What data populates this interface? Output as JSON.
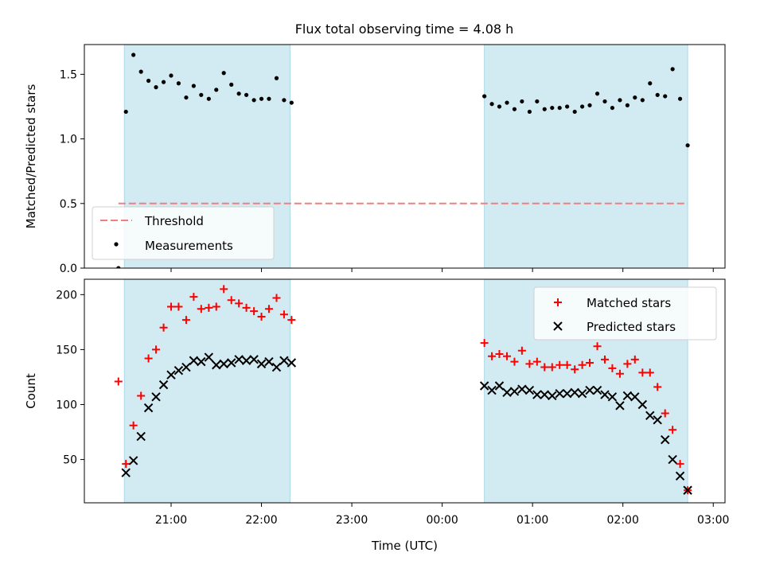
{
  "title": "Flux total observing time = 4.08 h",
  "chart_data": [
    {
      "type": "scatter",
      "panel": "top",
      "ylabel": "Matched/Predicted stars",
      "xlabel": "",
      "x_unit": "hours (UTC, values beyond 24 wrap past midnight)",
      "xlim": [
        20.04,
        27.13
      ],
      "ylim": [
        0.0,
        1.73
      ],
      "yticks": [
        0.0,
        0.5,
        1.0,
        1.5
      ],
      "ytick_labels": [
        "0.0",
        "0.5",
        "1.0",
        "1.5"
      ],
      "shaded_intervals": [
        [
          20.483,
          22.317
        ],
        [
          24.467,
          26.717
        ]
      ],
      "threshold": {
        "name": "Threshold",
        "y": 0.5,
        "x_range": [
          20.417,
          26.717
        ],
        "color": "#f08080",
        "style": "dashed"
      },
      "series": [
        {
          "name": "Measurements",
          "marker": "dot",
          "color": "#000000",
          "points": [
            [
              20.417,
              0.0
            ],
            [
              20.5,
              1.21
            ],
            [
              20.583,
              1.65
            ],
            [
              20.667,
              1.52
            ],
            [
              20.75,
              1.45
            ],
            [
              20.833,
              1.4
            ],
            [
              20.917,
              1.44
            ],
            [
              21.0,
              1.49
            ],
            [
              21.083,
              1.43
            ],
            [
              21.167,
              1.32
            ],
            [
              21.25,
              1.41
            ],
            [
              21.333,
              1.34
            ],
            [
              21.417,
              1.31
            ],
            [
              21.5,
              1.38
            ],
            [
              21.583,
              1.51
            ],
            [
              21.667,
              1.42
            ],
            [
              21.75,
              1.35
            ],
            [
              21.833,
              1.34
            ],
            [
              21.917,
              1.3
            ],
            [
              22.0,
              1.31
            ],
            [
              22.083,
              1.31
            ],
            [
              22.167,
              1.47
            ],
            [
              22.25,
              1.3
            ],
            [
              22.333,
              1.28
            ],
            [
              24.467,
              1.33
            ],
            [
              24.55,
              1.27
            ],
            [
              24.633,
              1.25
            ],
            [
              24.717,
              1.28
            ],
            [
              24.8,
              1.23
            ],
            [
              24.883,
              1.29
            ],
            [
              24.967,
              1.21
            ],
            [
              25.05,
              1.29
            ],
            [
              25.133,
              1.23
            ],
            [
              25.217,
              1.24
            ],
            [
              25.3,
              1.24
            ],
            [
              25.383,
              1.25
            ],
            [
              25.467,
              1.21
            ],
            [
              25.55,
              1.25
            ],
            [
              25.633,
              1.26
            ],
            [
              25.717,
              1.35
            ],
            [
              25.8,
              1.29
            ],
            [
              25.883,
              1.24
            ],
            [
              25.967,
              1.3
            ],
            [
              26.05,
              1.26
            ],
            [
              26.133,
              1.32
            ],
            [
              26.217,
              1.3
            ],
            [
              26.3,
              1.43
            ],
            [
              26.383,
              1.34
            ],
            [
              26.467,
              1.33
            ],
            [
              26.55,
              1.54
            ],
            [
              26.633,
              1.31
            ],
            [
              26.717,
              0.95
            ]
          ]
        }
      ],
      "legend": {
        "placement": "lower-left",
        "entries": [
          "Threshold",
          "Measurements"
        ]
      }
    },
    {
      "type": "scatter",
      "panel": "bottom",
      "ylabel": "Count",
      "xlabel": "Time (UTC)",
      "x_unit": "hours (UTC, values beyond 24 wrap past midnight)",
      "xlim": [
        20.04,
        27.13
      ],
      "ylim": [
        10.6,
        214
      ],
      "xticks": [
        21,
        22,
        23,
        24,
        25,
        26,
        27
      ],
      "xtick_labels": [
        "21:00",
        "22:00",
        "23:00",
        "00:00",
        "01:00",
        "02:00",
        "03:00"
      ],
      "yticks": [
        50,
        100,
        150,
        200
      ],
      "ytick_labels": [
        "50",
        "100",
        "150",
        "200"
      ],
      "shaded_intervals": [
        [
          20.483,
          22.317
        ],
        [
          24.467,
          26.717
        ]
      ],
      "series": [
        {
          "name": "Matched stars",
          "marker": "plus",
          "color": "#ff0000",
          "points": [
            [
              20.417,
              121
            ],
            [
              20.5,
              46
            ],
            [
              20.583,
              81
            ],
            [
              20.667,
              108
            ],
            [
              20.75,
              142
            ],
            [
              20.833,
              150
            ],
            [
              20.917,
              170
            ],
            [
              21.0,
              189
            ],
            [
              21.083,
              189
            ],
            [
              21.167,
              177
            ],
            [
              21.25,
              198
            ],
            [
              21.333,
              187
            ],
            [
              21.417,
              188
            ],
            [
              21.5,
              189
            ],
            [
              21.583,
              205
            ],
            [
              21.667,
              195
            ],
            [
              21.75,
              192
            ],
            [
              21.833,
              188
            ],
            [
              21.917,
              185
            ],
            [
              22.0,
              180
            ],
            [
              22.083,
              187
            ],
            [
              22.167,
              197
            ],
            [
              22.25,
              182
            ],
            [
              22.333,
              177
            ],
            [
              24.467,
              156
            ],
            [
              24.55,
              144
            ],
            [
              24.633,
              146
            ],
            [
              24.717,
              144
            ],
            [
              24.8,
              139
            ],
            [
              24.883,
              149
            ],
            [
              24.967,
              137
            ],
            [
              25.05,
              139
            ],
            [
              25.133,
              134
            ],
            [
              25.217,
              134
            ],
            [
              25.3,
              136
            ],
            [
              25.383,
              136
            ],
            [
              25.467,
              132
            ],
            [
              25.55,
              136
            ],
            [
              25.633,
              138
            ],
            [
              25.717,
              153
            ],
            [
              25.8,
              141
            ],
            [
              25.883,
              133
            ],
            [
              25.967,
              128
            ],
            [
              26.05,
              137
            ],
            [
              26.133,
              141
            ],
            [
              26.217,
              129
            ],
            [
              26.3,
              129
            ],
            [
              26.383,
              116
            ],
            [
              26.467,
              92
            ],
            [
              26.55,
              77
            ],
            [
              26.633,
              46
            ],
            [
              26.717,
              22
            ]
          ]
        },
        {
          "name": "Predicted stars",
          "marker": "x",
          "color": "#000000",
          "points": [
            [
              20.5,
              38
            ],
            [
              20.583,
              49
            ],
            [
              20.667,
              71
            ],
            [
              20.75,
              97
            ],
            [
              20.833,
              107
            ],
            [
              20.917,
              118
            ],
            [
              21.0,
              127
            ],
            [
              21.083,
              131
            ],
            [
              21.167,
              134
            ],
            [
              21.25,
              140
            ],
            [
              21.333,
              139
            ],
            [
              21.417,
              143
            ],
            [
              21.5,
              136
            ],
            [
              21.583,
              137
            ],
            [
              21.667,
              138
            ],
            [
              21.75,
              141
            ],
            [
              21.833,
              140
            ],
            [
              21.917,
              141
            ],
            [
              22.0,
              137
            ],
            [
              22.083,
              139
            ],
            [
              22.167,
              134
            ],
            [
              22.25,
              140
            ],
            [
              22.333,
              138
            ],
            [
              24.467,
              117
            ],
            [
              24.55,
              113
            ],
            [
              24.633,
              117
            ],
            [
              24.717,
              111
            ],
            [
              24.8,
              112
            ],
            [
              24.883,
              114
            ],
            [
              24.967,
              113
            ],
            [
              25.05,
              109
            ],
            [
              25.133,
              109
            ],
            [
              25.217,
              108
            ],
            [
              25.3,
              110
            ],
            [
              25.383,
              110
            ],
            [
              25.467,
              111
            ],
            [
              25.55,
              110
            ],
            [
              25.633,
              113
            ],
            [
              25.717,
              113
            ],
            [
              25.8,
              109
            ],
            [
              25.883,
              107
            ],
            [
              25.967,
              99
            ],
            [
              26.05,
              108
            ],
            [
              26.133,
              107
            ],
            [
              26.217,
              100
            ],
            [
              26.3,
              90
            ],
            [
              26.383,
              86
            ],
            [
              26.467,
              68
            ],
            [
              26.55,
              50
            ],
            [
              26.633,
              35
            ],
            [
              26.717,
              22
            ]
          ]
        }
      ],
      "legend": {
        "placement": "top-right",
        "entries": [
          "Matched stars",
          "Predicted stars"
        ]
      }
    }
  ],
  "colors": {
    "shade": "#add8e6",
    "threshold": "#f08080",
    "matched": "#ff0000",
    "predicted": "#000000",
    "measurements": "#000000"
  }
}
